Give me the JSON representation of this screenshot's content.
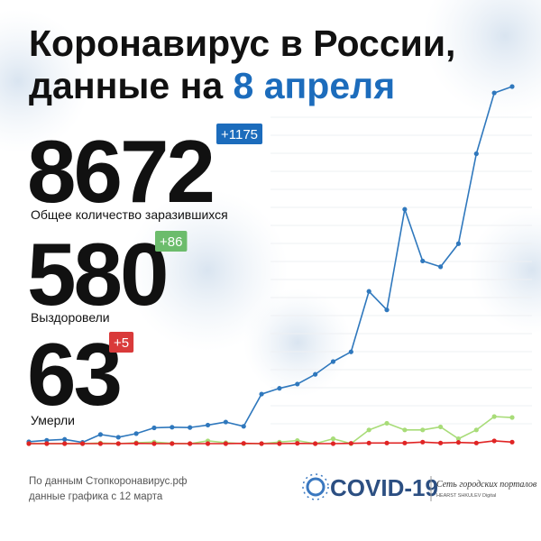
{
  "title_lines": [
    "Коронавирус в России,",
    "данные на"
  ],
  "title_date": "8 апреля",
  "stats": [
    {
      "value": "8672",
      "change": "+1175",
      "label": "Общее количество заразившихся",
      "color": "#1c6cbc"
    },
    {
      "value": "580",
      "change": "+86",
      "label": "Выздоровели",
      "color": "#6cbc6c"
    },
    {
      "value": "63",
      "change": "+5",
      "label": "Умерли",
      "color": "#d93a3a"
    }
  ],
  "footer": [
    "По данным Стопкоронавирус.рф",
    "данные графика с 12 марта"
  ],
  "logo": {
    "name": "COVID-19",
    "network": "Сеть городских порталов",
    "brand": "HEARST SHKULEV Digital"
  },
  "chart_data": {
    "type": "line",
    "series": [
      {
        "color": "#2f78bd",
        "values": [
          6,
          11,
          14,
          4,
          30,
          21,
          33,
          52,
          54,
          53,
          61,
          71,
          57,
          163,
          182,
          196,
          228,
          270,
          302,
          501,
          440,
          771,
          601,
          582,
          658,
          954,
          1154,
          1175
        ]
      },
      {
        "color": "#a8dc78",
        "values": [
          0,
          0,
          0,
          0,
          2,
          0,
          3,
          5,
          1,
          0,
          9,
          3,
          0,
          0,
          5,
          10,
          0,
          16,
          0,
          45,
          67,
          45,
          45,
          55,
          16,
          45,
          89,
          86
        ]
      },
      {
        "color": "#e02424",
        "values": [
          0,
          0,
          0,
          0,
          0,
          0,
          1,
          0,
          0,
          0,
          0,
          0,
          1,
          0,
          0,
          1,
          0,
          0,
          1,
          2,
          2,
          2,
          5,
          2,
          4,
          2,
          9,
          5
        ]
      }
    ]
  }
}
